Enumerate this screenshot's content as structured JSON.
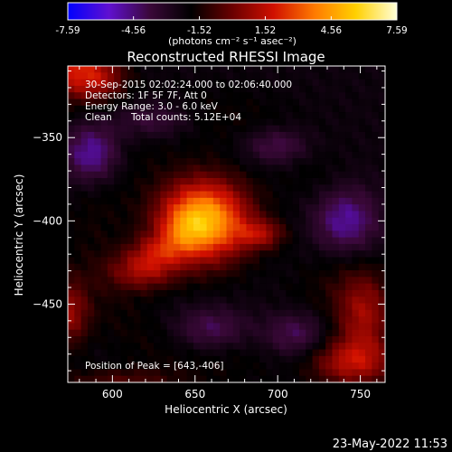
{
  "colorbar": {
    "tick_labels": [
      "-7.59",
      "-4.56",
      "-1.52",
      "1.52",
      "4.56",
      "7.59"
    ],
    "tick_values": [
      -7.59,
      -4.56,
      -1.52,
      1.52,
      4.56,
      7.59
    ],
    "range": [
      -7.59,
      7.59
    ],
    "units": "(photons cm⁻² s⁻¹ asec⁻²)",
    "stops": [
      "#0000ff",
      "#6010d0",
      "#3a0838",
      "#000000",
      "#6a0000",
      "#d01000",
      "#ff7a00",
      "#ffd000",
      "#ffffd8"
    ]
  },
  "plot": {
    "title": "Reconstructed RHESSI Image",
    "xlabel": "Heliocentric X (arcsec)",
    "ylabel": "Heliocentric Y (arcsec)",
    "xlim": [
      573,
      765
    ],
    "ylim": [
      -497,
      -307
    ],
    "x_ticks": [
      600,
      650,
      700,
      750
    ],
    "y_ticks": [
      -350,
      -400,
      -450
    ],
    "x_tick_labels": [
      "600",
      "650",
      "700",
      "750"
    ],
    "y_tick_labels": [
      "−350",
      "−400",
      "−450"
    ]
  },
  "annotations": {
    "time_range": "30-Sep-2015 02:02:24.000 to 02:06:40.000",
    "detectors": "Detectors: 1F 5F 7F, Att 0",
    "energy": "Energy Range: 3.0 - 6.0 keV",
    "algorithm": "Clean",
    "total_counts": "Total counts: 5.12E+04",
    "peak": "Position of Peak = [643,-406]"
  },
  "footer": {
    "timestamp": "23-May-2022 11:53"
  },
  "image": {
    "sources": [
      {
        "x": 655,
        "y": -400,
        "sx": 19,
        "sy": 17,
        "amp": 7.6
      },
      {
        "x": 643,
        "y": -406,
        "sx": 9,
        "sy": 8,
        "amp": 1.2
      },
      {
        "x": 690,
        "y": -408,
        "sx": 10,
        "sy": 6,
        "amp": 2.6
      },
      {
        "x": 618,
        "y": -430,
        "sx": 14,
        "sy": 8,
        "amp": 3.0
      },
      {
        "x": 628,
        "y": -418,
        "sx": 12,
        "sy": 7,
        "amp": 2.2
      },
      {
        "x": 573,
        "y": -307,
        "sx": 16,
        "sy": 14,
        "amp": 3.6
      },
      {
        "x": 592,
        "y": -315,
        "sx": 12,
        "sy": 9,
        "amp": 2.4
      },
      {
        "x": 573,
        "y": -455,
        "sx": 9,
        "sy": 14,
        "amp": 3.0
      },
      {
        "x": 752,
        "y": -455,
        "sx": 12,
        "sy": 18,
        "amp": 3.2
      },
      {
        "x": 745,
        "y": -485,
        "sx": 18,
        "sy": 10,
        "amp": 3.4
      },
      {
        "x": 605,
        "y": -497,
        "sx": 25,
        "sy": 6,
        "amp": 1.6
      }
    ],
    "ring_center": [
      660,
      -410
    ],
    "ring_radius": 72,
    "ring_width": 14,
    "ring_amp": 0.6,
    "background": -2.3,
    "negative_wells": [
      {
        "x": 588,
        "y": -360,
        "sx": 12,
        "sy": 12,
        "amp": -3.0
      },
      {
        "x": 740,
        "y": -400,
        "sx": 14,
        "sy": 14,
        "amp": -3.2
      },
      {
        "x": 710,
        "y": -468,
        "sx": 14,
        "sy": 10,
        "amp": -2.4
      },
      {
        "x": 660,
        "y": -465,
        "sx": 16,
        "sy": 9,
        "amp": -2.0
      },
      {
        "x": 700,
        "y": -355,
        "sx": 14,
        "sy": 8,
        "amp": -2.2
      },
      {
        "x": 625,
        "y": -340,
        "sx": 16,
        "sy": 8,
        "amp": -1.8
      }
    ]
  }
}
